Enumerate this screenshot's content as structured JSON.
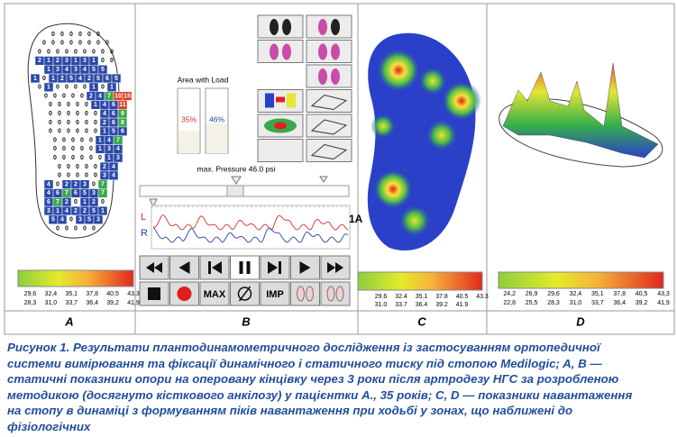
{
  "panels": {
    "a": {
      "label": "A",
      "foot_grid": [
        [
          0,
          0,
          0,
          0,
          0,
          0
        ],
        [
          0,
          0,
          0,
          0,
          0,
          0,
          0,
          0
        ],
        [
          0,
          0,
          0,
          0,
          0,
          0,
          0,
          0,
          0
        ],
        [
          2,
          1,
          2,
          3,
          1,
          3,
          1,
          0,
          0
        ],
        [
          1,
          3,
          4,
          3,
          4,
          5,
          5
        ],
        [
          1,
          0,
          1,
          2,
          5,
          4,
          2,
          5,
          6,
          5
        ],
        [
          0,
          1,
          0,
          0,
          0,
          0,
          1,
          0,
          1
        ],
        [
          0,
          0,
          0,
          0,
          0,
          2,
          4,
          7,
          10,
          15
        ],
        [
          0,
          0,
          0,
          0,
          0,
          1,
          4,
          6,
          11
        ],
        [
          0,
          0,
          0,
          0,
          0,
          0,
          4,
          6,
          9
        ],
        [
          0,
          0,
          0,
          0,
          0,
          0,
          2,
          6,
          8
        ],
        [
          0,
          0,
          0,
          0,
          0,
          0,
          1,
          5,
          6
        ],
        [
          0,
          0,
          0,
          0,
          0,
          1,
          4,
          7
        ],
        [
          0,
          0,
          0,
          0,
          0,
          1,
          3,
          4
        ],
        [
          0,
          0,
          0,
          0,
          0,
          0,
          1,
          3
        ],
        [
          0,
          0,
          0,
          0,
          0,
          2,
          4
        ],
        [
          0,
          0,
          0,
          0,
          0,
          3,
          4
        ],
        [
          4,
          0,
          2,
          2,
          3,
          0,
          7
        ],
        [
          4,
          6,
          7,
          6,
          5,
          3,
          7
        ],
        [
          6,
          7,
          2,
          0,
          1,
          2,
          0
        ],
        [
          3,
          1,
          4,
          2,
          2,
          5,
          1
        ],
        [
          5,
          4,
          0,
          3,
          5,
          3
        ],
        [
          0,
          0,
          0,
          0,
          0
        ]
      ],
      "scale_top": [
        "29,6",
        "32,4",
        "35,1",
        "37,8",
        "40,5",
        "43,3"
      ],
      "scale_bottom": [
        "28,3",
        "31,0",
        "33,7",
        "36,4",
        "39,2",
        "41,9"
      ]
    },
    "b": {
      "label": "B",
      "area_title": "Area with Load",
      "area_with_load": [
        {
          "value": 35,
          "label": "35%"
        },
        {
          "value": 46,
          "label": "46%"
        }
      ],
      "max_pressure": "max. Pressure 46.0 psi",
      "left": "L",
      "right": "R",
      "marker": "1A",
      "button_max": "MAX",
      "button_imp": "IMP"
    },
    "c": {
      "label": "C",
      "scale_top": [
        "29.6",
        "32.4",
        "35.1",
        "37.8",
        "40.5",
        "43.3"
      ],
      "scale_bottom": [
        "31.0",
        "33.7",
        "36.4",
        "39.2",
        "41.9"
      ]
    },
    "d": {
      "label": "D",
      "scale_top": [
        "24,2",
        "26,9",
        "29,6",
        "32,4",
        "35,1",
        "37,8",
        "40,5",
        "43,3"
      ],
      "scale_bottom": [
        "22,8",
        "25,5",
        "28,3",
        "31,0",
        "33,7",
        "36,4",
        "39,2",
        "41,9"
      ]
    }
  },
  "caption": [
    "Рисунок 1. Результати плантодинамометричного дослідження із застосуванням ортопедичної",
    "системи вимірювання та фіксації динамічного і статичного тиску під стопою Medilogic; A, B —",
    "статичні показники опори на оперовану кінцівку через 3 роки після артродезу НГС за розробленою",
    "методикою (досягнуто кісткового анкілозу) у пацієнтки А., 35 років; C, D — показники навантаження",
    "на стопу в динаміці з формуванням піків навантаження при ходьбі у зонах, що наближені до",
    "фізіологічних"
  ]
}
